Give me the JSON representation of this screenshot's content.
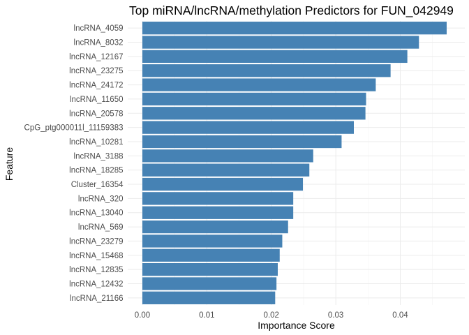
{
  "chart_data": {
    "type": "bar",
    "orientation": "horizontal",
    "title": "Top miRNA/lncRNA/methylation Predictors for FUN_042949",
    "xlabel": "Importance Score",
    "ylabel": "Feature",
    "xlim": [
      0,
      0.048
    ],
    "x_ticks": [
      "0.00",
      "0.01",
      "0.02",
      "0.03",
      "0.04"
    ],
    "x_tick_values": [
      0,
      0.01,
      0.02,
      0.03,
      0.04
    ],
    "grid": true,
    "bar_color": "#4682b4",
    "categories": [
      "lncRNA_4059",
      "lncRNA_8032",
      "lncRNA_12167",
      "lncRNA_23275",
      "lncRNA_24172",
      "lncRNA_11650",
      "lncRNA_20578",
      "CpG_ptg000011l_11159383",
      "lncRNA_10281",
      "lncRNA_3188",
      "lncRNA_18285",
      "Cluster_16354",
      "lncRNA_320",
      "lncRNA_13040",
      "lncRNA_569",
      "lncRNA_23279",
      "lncRNA_15468",
      "lncRNA_12835",
      "lncRNA_12432",
      "lncRNA_21166"
    ],
    "values": [
      0.0472,
      0.0429,
      0.0411,
      0.0385,
      0.0362,
      0.0347,
      0.0346,
      0.0328,
      0.0309,
      0.0265,
      0.0259,
      0.0249,
      0.0234,
      0.0234,
      0.0226,
      0.0217,
      0.0213,
      0.021,
      0.0208,
      0.0206
    ]
  }
}
